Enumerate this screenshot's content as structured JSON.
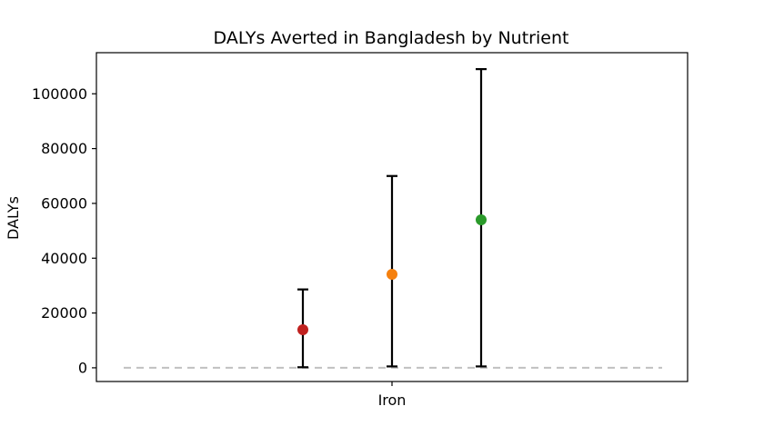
{
  "chart_data": {
    "type": "scatter",
    "title": "DALYs Averted in Bangladesh by Nutrient",
    "xlabel": "",
    "ylabel": "DALYs",
    "categories": [
      "Iron"
    ],
    "ylim": [
      -5000,
      115000
    ],
    "yticks": [
      0,
      20000,
      40000,
      60000,
      80000,
      100000
    ],
    "grid": false,
    "legend": "none",
    "reference_line": {
      "y": 0,
      "style": "dashed",
      "color": "#c0c0c0"
    },
    "points": [
      {
        "category": "Iron",
        "value": 13900,
        "lower": 200,
        "upper": 28600,
        "color": "#c0211f"
      },
      {
        "category": "Iron",
        "value": 34100,
        "lower": 500,
        "upper": 70000,
        "color": "#f5800e"
      },
      {
        "category": "Iron",
        "value": 54000,
        "lower": 500,
        "upper": 109000,
        "color": "#2a9a2a"
      }
    ]
  }
}
